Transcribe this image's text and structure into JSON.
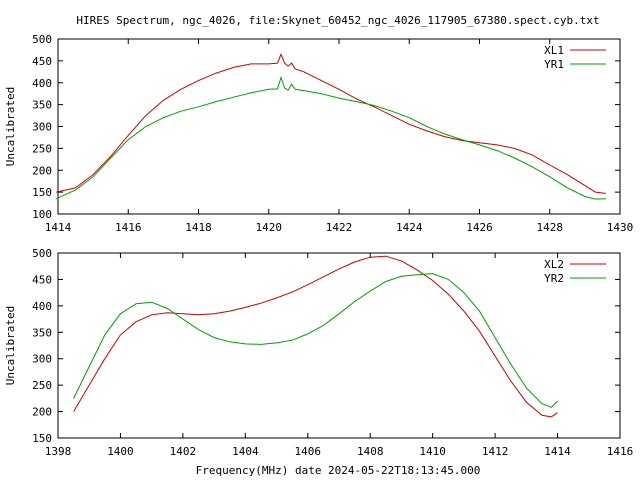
{
  "figure": {
    "title": "HIRES Spectrum, ngc_4026, file:Skynet_60452_ngc_4026_117905_67380.spect.cyb.txt",
    "xlabel": "Frequency(MHz) date 2024-05-22T18:13:45.000",
    "colors": {
      "red": "#cc0000",
      "green": "#00a000"
    }
  },
  "chart_data": [
    {
      "type": "line",
      "ylabel": "Uncalibrated",
      "xlim": [
        1414,
        1430
      ],
      "ylim": [
        100,
        500
      ],
      "xticks": [
        1414,
        1416,
        1418,
        1420,
        1422,
        1424,
        1426,
        1428,
        1430
      ],
      "yticks": [
        100,
        150,
        200,
        250,
        300,
        350,
        400,
        450,
        500
      ],
      "grid": false,
      "legend": "top-right",
      "series": [
        {
          "name": "XL1",
          "color": "#cc0000",
          "points": [
            [
              1413.95,
              150
            ],
            [
              1414.5,
              160
            ],
            [
              1415,
              190
            ],
            [
              1415.5,
              232
            ],
            [
              1416,
              280
            ],
            [
              1416.5,
              325
            ],
            [
              1417,
              360
            ],
            [
              1417.5,
              385
            ],
            [
              1418,
              405
            ],
            [
              1418.5,
              422
            ],
            [
              1419,
              435
            ],
            [
              1419.5,
              443
            ],
            [
              1420,
              443
            ],
            [
              1420.25,
              445
            ],
            [
              1420.35,
              465
            ],
            [
              1420.45,
              445
            ],
            [
              1420.55,
              438
            ],
            [
              1420.65,
              445
            ],
            [
              1420.75,
              432
            ],
            [
              1421,
              425
            ],
            [
              1421.5,
              405
            ],
            [
              1422,
              385
            ],
            [
              1422.5,
              363
            ],
            [
              1423,
              345
            ],
            [
              1423.5,
              325
            ],
            [
              1424,
              305
            ],
            [
              1424.5,
              290
            ],
            [
              1425,
              277
            ],
            [
              1425.5,
              268
            ],
            [
              1426,
              263
            ],
            [
              1426.5,
              258
            ],
            [
              1427,
              250
            ],
            [
              1427.5,
              235
            ],
            [
              1428,
              212
            ],
            [
              1428.5,
              190
            ],
            [
              1429,
              165
            ],
            [
              1429.3,
              150
            ],
            [
              1429.6,
              147
            ]
          ]
        },
        {
          "name": "YR1",
          "color": "#00a000",
          "points": [
            [
              1413.95,
              135
            ],
            [
              1414.5,
              155
            ],
            [
              1415,
              185
            ],
            [
              1415.5,
              228
            ],
            [
              1416,
              270
            ],
            [
              1416.5,
              300
            ],
            [
              1417,
              320
            ],
            [
              1417.5,
              335
            ],
            [
              1418,
              345
            ],
            [
              1418.5,
              357
            ],
            [
              1419,
              367
            ],
            [
              1419.5,
              377
            ],
            [
              1420,
              385
            ],
            [
              1420.25,
              386
            ],
            [
              1420.35,
              412
            ],
            [
              1420.45,
              388
            ],
            [
              1420.55,
              383
            ],
            [
              1420.65,
              397
            ],
            [
              1420.75,
              385
            ],
            [
              1421,
              382
            ],
            [
              1421.5,
              375
            ],
            [
              1422,
              365
            ],
            [
              1422.5,
              357
            ],
            [
              1423,
              348
            ],
            [
              1423.5,
              335
            ],
            [
              1424,
              320
            ],
            [
              1424.5,
              300
            ],
            [
              1425,
              283
            ],
            [
              1425.5,
              270
            ],
            [
              1426,
              258
            ],
            [
              1426.5,
              245
            ],
            [
              1427,
              228
            ],
            [
              1427.5,
              208
            ],
            [
              1428,
              185
            ],
            [
              1428.5,
              160
            ],
            [
              1429,
              140
            ],
            [
              1429.3,
              134
            ],
            [
              1429.6,
              135
            ]
          ]
        }
      ]
    },
    {
      "type": "line",
      "ylabel": "Uncalibrated",
      "xlim": [
        1398,
        1416
      ],
      "ylim": [
        150,
        500
      ],
      "xticks": [
        1398,
        1400,
        1402,
        1404,
        1406,
        1408,
        1410,
        1412,
        1414,
        1416
      ],
      "yticks": [
        150,
        200,
        250,
        300,
        350,
        400,
        450,
        500
      ],
      "grid": false,
      "legend": "top-right",
      "series": [
        {
          "name": "XL2",
          "color": "#cc0000",
          "points": [
            [
              1398.5,
              200
            ],
            [
              1399,
              250
            ],
            [
              1399.5,
              300
            ],
            [
              1400,
              345
            ],
            [
              1400.5,
              370
            ],
            [
              1401,
              383
            ],
            [
              1401.5,
              387
            ],
            [
              1402,
              385
            ],
            [
              1402.5,
              383
            ],
            [
              1403,
              385
            ],
            [
              1403.5,
              390
            ],
            [
              1404,
              397
            ],
            [
              1404.5,
              405
            ],
            [
              1405,
              415
            ],
            [
              1405.5,
              426
            ],
            [
              1406,
              440
            ],
            [
              1406.5,
              455
            ],
            [
              1407,
              470
            ],
            [
              1407.5,
              483
            ],
            [
              1408,
              492
            ],
            [
              1408.5,
              494
            ],
            [
              1409,
              485
            ],
            [
              1409.5,
              468
            ],
            [
              1410,
              448
            ],
            [
              1410.5,
              422
            ],
            [
              1411,
              390
            ],
            [
              1411.5,
              352
            ],
            [
              1412,
              305
            ],
            [
              1412.5,
              258
            ],
            [
              1413,
              218
            ],
            [
              1413.5,
              193
            ],
            [
              1413.8,
              190
            ],
            [
              1414,
              198
            ]
          ]
        },
        {
          "name": "YR2",
          "color": "#00a000",
          "points": [
            [
              1398.5,
              225
            ],
            [
              1399,
              285
            ],
            [
              1399.5,
              345
            ],
            [
              1400,
              385
            ],
            [
              1400.5,
              404
            ],
            [
              1401,
              407
            ],
            [
              1401.5,
              395
            ],
            [
              1402,
              375
            ],
            [
              1402.5,
              355
            ],
            [
              1403,
              340
            ],
            [
              1403.5,
              332
            ],
            [
              1404,
              328
            ],
            [
              1404.5,
              327
            ],
            [
              1405,
              330
            ],
            [
              1405.5,
              335
            ],
            [
              1406,
              347
            ],
            [
              1406.5,
              363
            ],
            [
              1407,
              385
            ],
            [
              1407.5,
              408
            ],
            [
              1408,
              428
            ],
            [
              1408.5,
              446
            ],
            [
              1409,
              456
            ],
            [
              1409.5,
              459
            ],
            [
              1410,
              461
            ],
            [
              1410.5,
              450
            ],
            [
              1411,
              425
            ],
            [
              1411.5,
              390
            ],
            [
              1412,
              340
            ],
            [
              1412.5,
              290
            ],
            [
              1413,
              245
            ],
            [
              1413.5,
              215
            ],
            [
              1413.8,
              208
            ],
            [
              1414,
              220
            ]
          ]
        }
      ]
    }
  ]
}
